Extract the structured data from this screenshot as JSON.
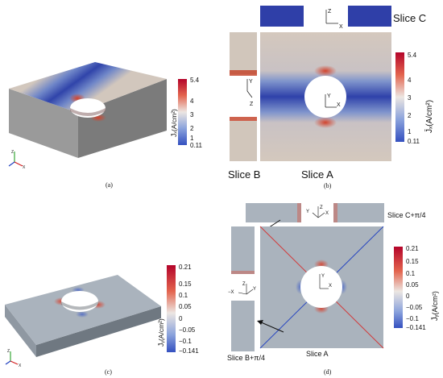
{
  "panels": {
    "a": {
      "caption": "(a)",
      "colorbar": {
        "max": "5.4",
        "ticks": [
          "4",
          "3",
          "2",
          "1"
        ],
        "min": "0.11",
        "label": "J̄ₓ(A/cm²)"
      }
    },
    "b": {
      "caption": "(b)",
      "colorbar": {
        "max": "5.4",
        "ticks": [
          "4",
          "3",
          "2",
          "1"
        ],
        "min": "0.11",
        "label": "J̄ₓ(A/cm²)"
      },
      "slice_labels": {
        "a": "Slice A",
        "b": "Slice B",
        "c": "Slice C"
      },
      "axes": {
        "z": "Z",
        "x": "X",
        "y": "Y"
      }
    },
    "c": {
      "caption": "(c)",
      "colorbar": {
        "max": "0.21",
        "ticks": [
          "0.15",
          "0.1",
          "0.05",
          "0",
          "−0.05",
          "−0.1"
        ],
        "min": "−0.141",
        "label": "J̄ᵧ(A/cm²)"
      }
    },
    "d": {
      "caption": "(d)",
      "colorbar": {
        "max": "0.21",
        "ticks": [
          "0.15",
          "0.1",
          "0.05",
          "0",
          "−0.05",
          "−0.1"
        ],
        "min": "−0.141",
        "label": "J̄ᵧ(A/cm²)"
      },
      "slice_labels": {
        "a": "Slice A",
        "b": "Slice B+π/4",
        "c": "Slice C+π/4"
      },
      "axes": {
        "z": "Z",
        "x": "X",
        "y": "Y",
        "negx": "−X"
      }
    }
  },
  "colors": {
    "deep_blue": "#2f3fa8",
    "mid_blue": "#6f86c8",
    "neutral": "#d2c9c0",
    "red": "#c4392a",
    "gray_plate": "#aab3bd",
    "axis_green": "#3aa83a",
    "axis_red": "#d42020",
    "axis_blue": "#2040c0",
    "diag_blue": "#2a48c0",
    "diag_red": "#d23a3a"
  }
}
